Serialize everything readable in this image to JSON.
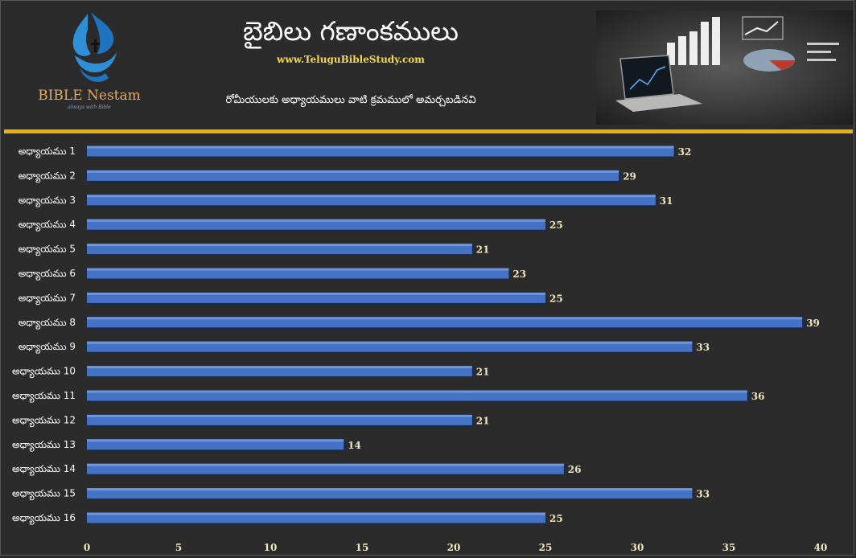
{
  "header": {
    "title": "బైబిలు గణాంకములు",
    "website": "www.TeluguBibleStudy.com",
    "subtitle": "రోమీయులకు అధ్యాయములు వాటి క్రమములో అమర్చబడినవి",
    "brand": "BIBLE Nestam",
    "tagline": "always with Bible"
  },
  "colors": {
    "bar": "#4472c4",
    "divider": "#e8b300",
    "background": "#2b2b2b"
  },
  "chart_data": {
    "type": "bar",
    "orientation": "horizontal",
    "categories": [
      "అధ్యాయము 1",
      "అధ్యాయము 2",
      "అధ్యాయము 3",
      "అధ్యాయము 4",
      "అధ్యాయము 5",
      "అధ్యాయము 6",
      "అధ్యాయము 7",
      "అధ్యాయము 8",
      "అధ్యాయము 9",
      "అధ్యాయము 10",
      "అధ్యాయము 11",
      "అధ్యాయము 12",
      "అధ్యాయము 13",
      "అధ్యాయము 14",
      "అధ్యాయము 15",
      "అధ్యాయము 16"
    ],
    "values": [
      32,
      29,
      31,
      25,
      21,
      23,
      25,
      39,
      33,
      21,
      36,
      21,
      14,
      26,
      33,
      25
    ],
    "xlim": [
      0,
      40
    ],
    "xticks": [
      0,
      5,
      10,
      15,
      20,
      25,
      30,
      35,
      40
    ],
    "grid": false,
    "data_labels": true
  }
}
